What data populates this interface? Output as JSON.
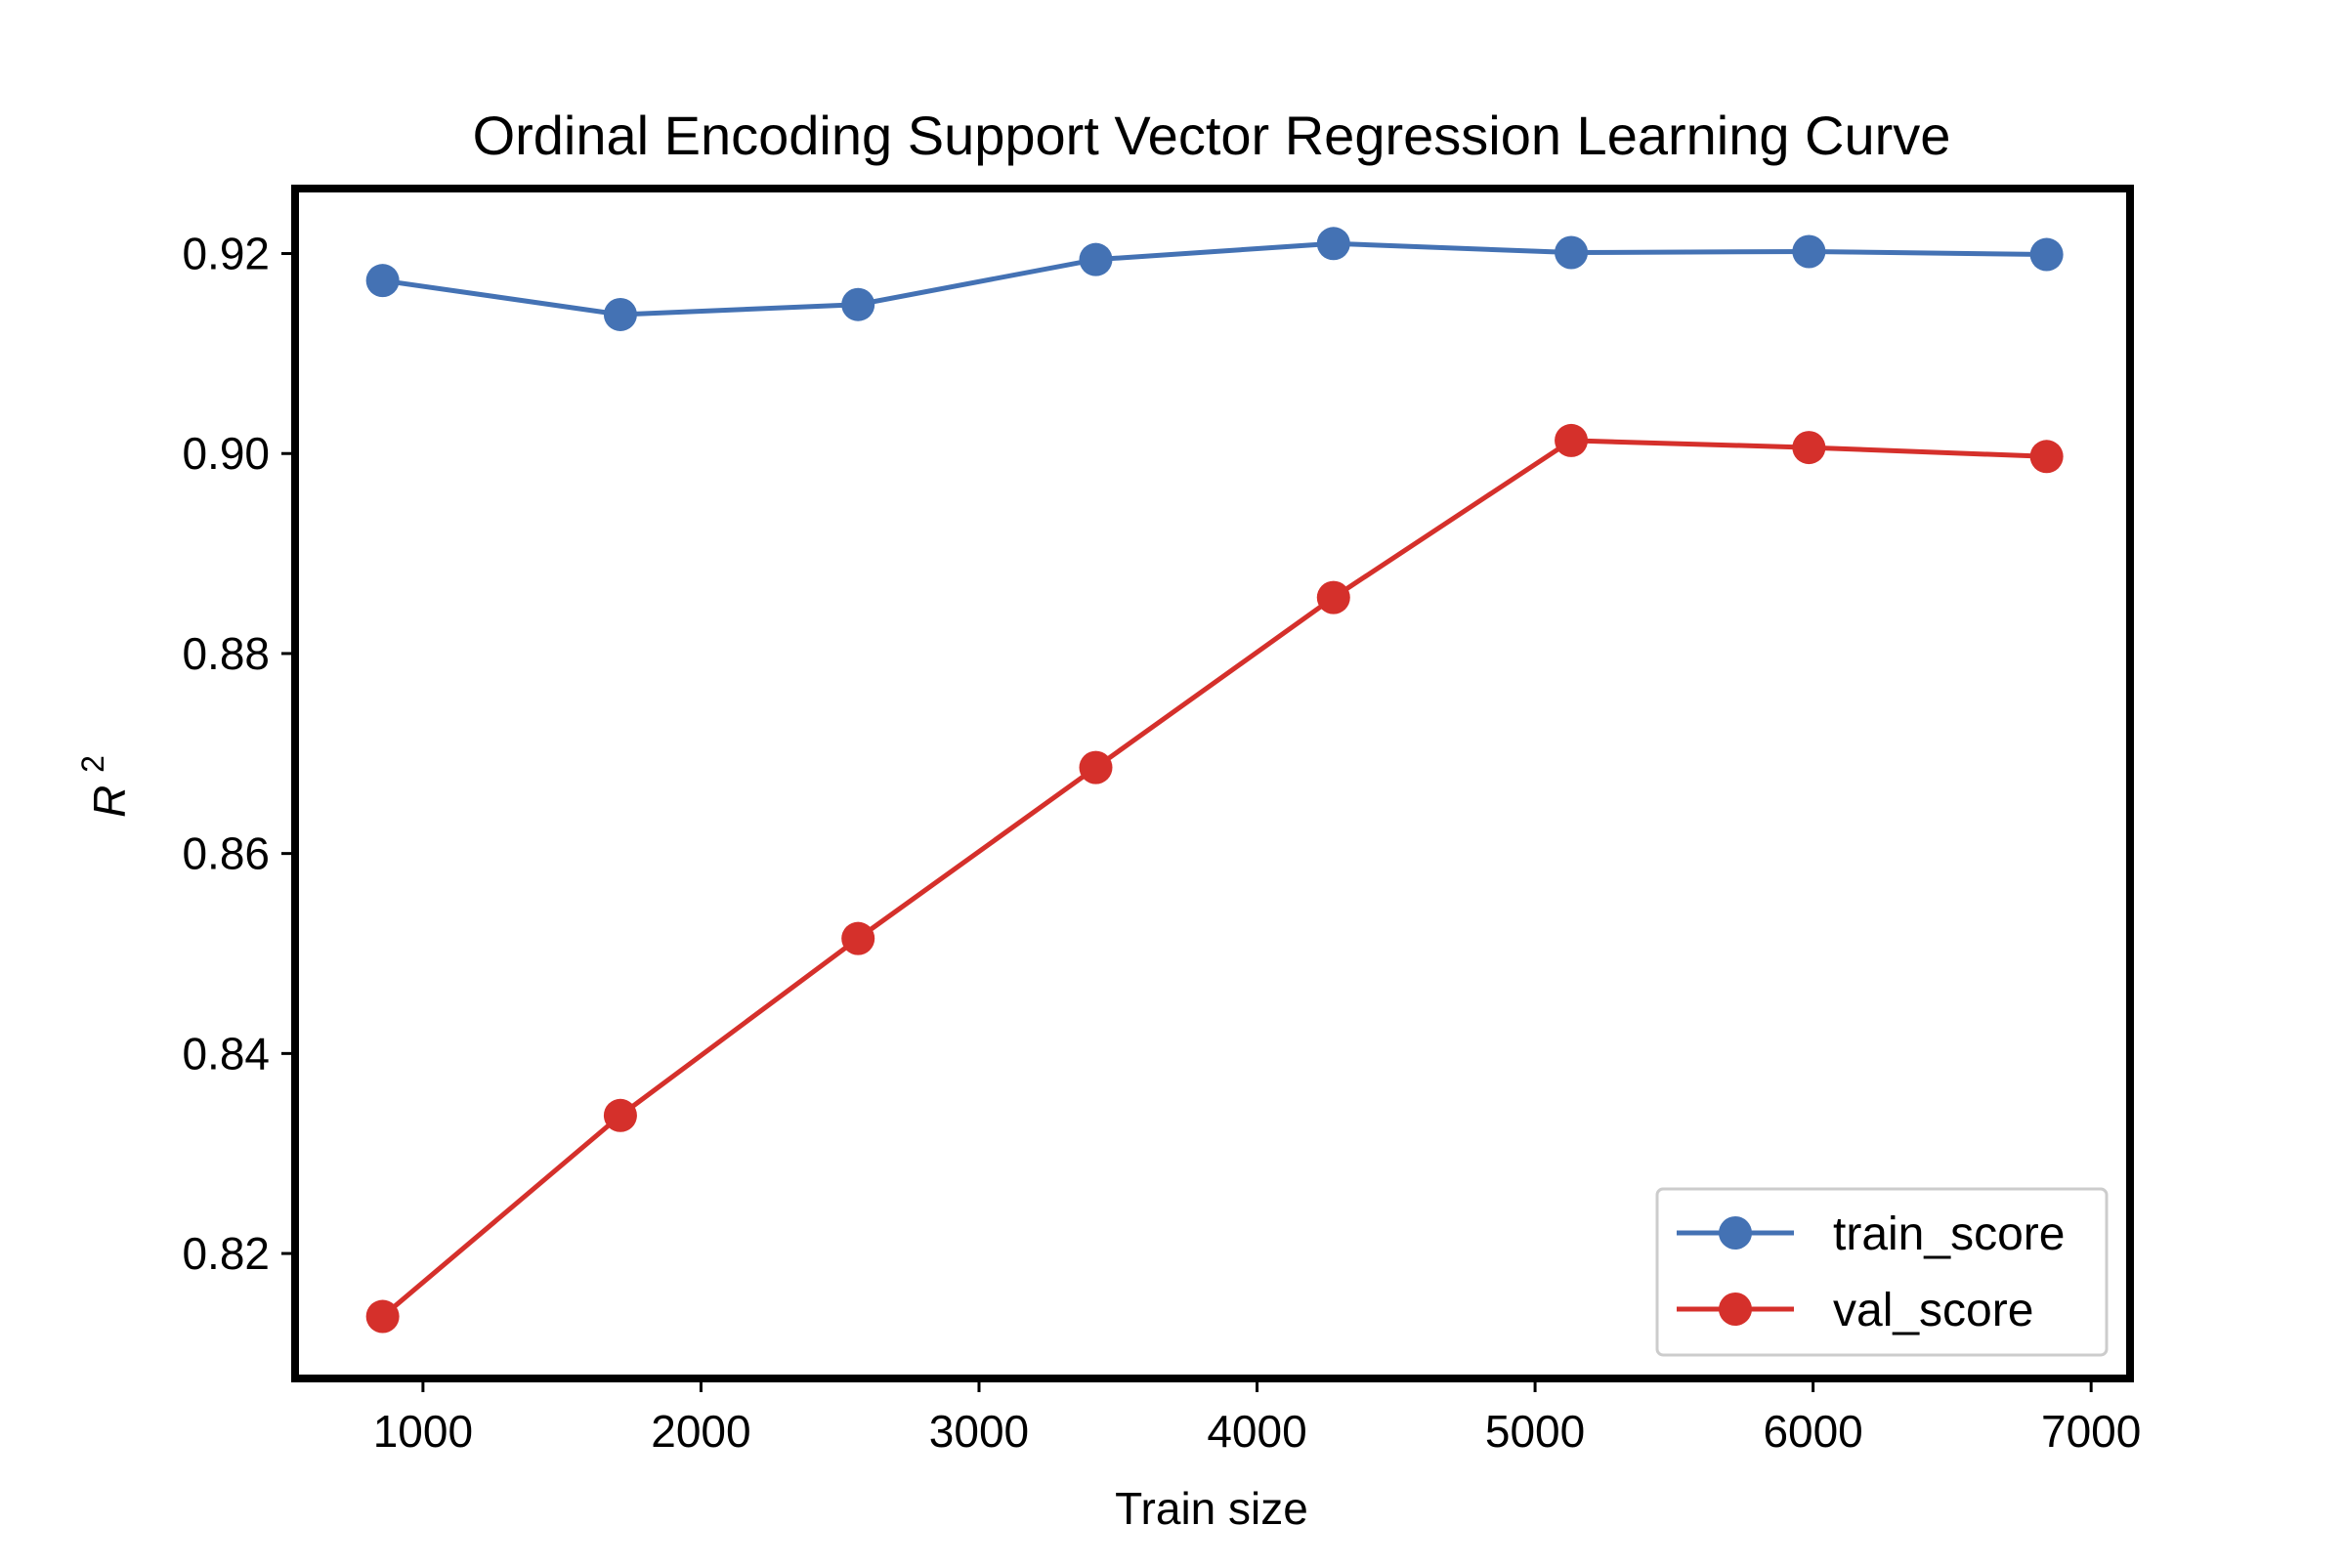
{
  "chart_data": {
    "type": "line",
    "title": "Ordinal Encoding Support Vector Regression Learning Curve",
    "xlabel": "Train size",
    "ylabel_base": "R",
    "ylabel_sup": "2",
    "xlim": [
      540,
      7140
    ],
    "ylim": [
      0.8075,
      0.9265
    ],
    "xticks": [
      1000,
      2000,
      3000,
      4000,
      5000,
      6000,
      7000
    ],
    "xtick_labels": [
      "1000",
      "2000",
      "3000",
      "4000",
      "5000",
      "6000",
      "7000"
    ],
    "yticks": [
      0.82,
      0.84,
      0.86,
      0.88,
      0.9,
      0.92
    ],
    "ytick_labels": [
      "0.82",
      "0.84",
      "0.86",
      "0.88",
      "0.90",
      "0.92"
    ],
    "x": [
      855,
      1710,
      2565,
      3420,
      4275,
      5130,
      5985,
      6840
    ],
    "series": [
      {
        "name": "train_score",
        "color": "#4472b4",
        "values": [
          0.9173,
          0.9139,
          0.9149,
          0.9194,
          0.921,
          0.9201,
          0.9202,
          0.9199
        ]
      },
      {
        "name": "val_score",
        "color": "#d5302b",
        "values": [
          0.8137,
          0.8338,
          0.8515,
          0.8686,
          0.8856,
          0.9013,
          0.9006,
          0.8997
        ]
      }
    ],
    "legend_position": "lower-right",
    "grid": false
  }
}
